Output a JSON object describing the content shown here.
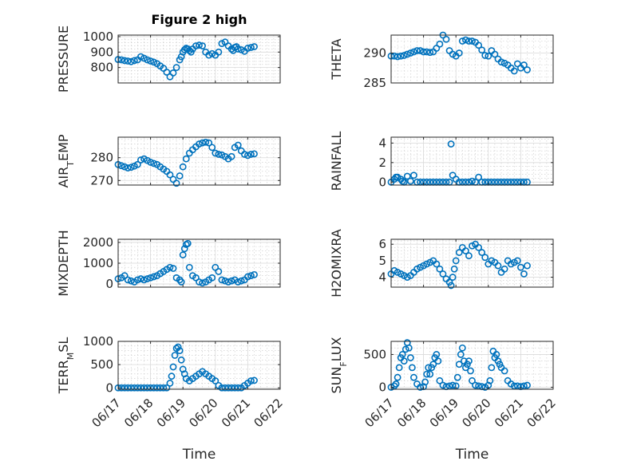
{
  "title": "Figure 2 high",
  "xlabel": "Time",
  "x_ticks": [
    "06/17",
    "06/18",
    "06/19",
    "06/20",
    "06/21",
    "06/22"
  ],
  "marker_color": "#0072BD",
  "chart_data": [
    {
      "type": "scatter",
      "name": "PRESSURE",
      "ylabel": "PRESSURE",
      "ylim": [
        700,
        1010
      ],
      "yticks": [
        800,
        900,
        1000
      ],
      "xlim": [
        0,
        5
      ],
      "x": [
        0.0,
        0.1,
        0.2,
        0.3,
        0.4,
        0.5,
        0.6,
        0.7,
        0.8,
        0.9,
        1.0,
        1.1,
        1.2,
        1.3,
        1.4,
        1.5,
        1.6,
        1.7,
        1.8,
        1.9,
        1.95,
        2.0,
        2.05,
        2.1,
        2.15,
        2.2,
        2.25,
        2.3,
        2.4,
        2.5,
        2.6,
        2.7,
        2.8,
        2.9,
        3.0,
        3.1,
        3.2,
        3.3,
        3.4,
        3.5,
        3.55,
        3.6,
        3.65,
        3.7,
        3.8,
        3.9,
        4.0,
        4.1,
        4.2
      ],
      "y": [
        852,
        850,
        845,
        842,
        838,
        845,
        850,
        870,
        860,
        850,
        842,
        835,
        825,
        810,
        795,
        770,
        740,
        765,
        800,
        850,
        870,
        900,
        915,
        925,
        920,
        910,
        900,
        920,
        940,
        945,
        940,
        900,
        880,
        890,
        880,
        900,
        955,
        965,
        940,
        920,
        910,
        930,
        935,
        920,
        915,
        905,
        925,
        930,
        935
      ]
    },
    {
      "type": "scatter",
      "name": "THETA",
      "ylabel": "THETA",
      "ylim": [
        285,
        293
      ],
      "yticks": [
        285,
        290
      ],
      "xlim": [
        0,
        5
      ],
      "x": [
        0.0,
        0.1,
        0.2,
        0.3,
        0.4,
        0.5,
        0.6,
        0.7,
        0.8,
        0.9,
        1.0,
        1.1,
        1.2,
        1.3,
        1.4,
        1.5,
        1.6,
        1.7,
        1.8,
        1.9,
        2.0,
        2.1,
        2.2,
        2.3,
        2.4,
        2.5,
        2.6,
        2.7,
        2.8,
        2.9,
        3.0,
        3.1,
        3.2,
        3.3,
        3.4,
        3.5,
        3.6,
        3.7,
        3.8,
        3.9,
        4.0,
        4.1,
        4.2
      ],
      "y": [
        289.5,
        289.5,
        289.4,
        289.5,
        289.6,
        289.8,
        290.0,
        290.2,
        290.4,
        290.4,
        290.2,
        290.2,
        290.1,
        290.2,
        290.8,
        291.5,
        293.0,
        292.3,
        290.4,
        289.8,
        289.5,
        290.0,
        292.0,
        292.2,
        292.0,
        292.0,
        291.8,
        291.3,
        290.5,
        289.6,
        289.5,
        290.4,
        289.8,
        289.0,
        288.5,
        288.3,
        288.0,
        287.5,
        287.0,
        288.2,
        287.5,
        288.0,
        287.2
      ]
    },
    {
      "type": "scatter",
      "name": "AIR_TEMP",
      "ylabel": "AIR_TEMP",
      "ylim": [
        268,
        289
      ],
      "yticks": [
        270,
        280
      ],
      "xlim": [
        0,
        5
      ],
      "x": [
        0.0,
        0.1,
        0.2,
        0.3,
        0.4,
        0.5,
        0.6,
        0.7,
        0.8,
        0.9,
        1.0,
        1.1,
        1.2,
        1.3,
        1.4,
        1.5,
        1.6,
        1.7,
        1.8,
        1.9,
        2.0,
        2.1,
        2.2,
        2.3,
        2.4,
        2.5,
        2.6,
        2.7,
        2.8,
        2.9,
        3.0,
        3.1,
        3.2,
        3.3,
        3.4,
        3.5,
        3.6,
        3.7,
        3.8,
        3.9,
        4.0,
        4.1,
        4.2
      ],
      "y": [
        277.0,
        276.5,
        276.0,
        275.5,
        275.8,
        276.3,
        277.0,
        279.0,
        279.5,
        278.8,
        278.0,
        277.5,
        277.0,
        276.0,
        275.0,
        274.0,
        272.5,
        270.5,
        268.8,
        272.0,
        276.0,
        279.5,
        282.0,
        283.5,
        284.8,
        286.0,
        286.5,
        286.8,
        286.5,
        284.5,
        282.0,
        281.5,
        281.2,
        280.5,
        279.5,
        280.5,
        284.5,
        285.5,
        283.0,
        281.5,
        281.0,
        281.5,
        281.7
      ]
    },
    {
      "type": "scatter",
      "name": "RAINFALL",
      "ylabel": "RAINFALL",
      "ylim": [
        -0.3,
        4.6
      ],
      "yticks": [
        0,
        2,
        4
      ],
      "xlim": [
        0,
        5
      ],
      "x": [
        0.0,
        0.1,
        0.15,
        0.2,
        0.3,
        0.35,
        0.4,
        0.5,
        0.6,
        0.7,
        0.8,
        0.9,
        1.0,
        1.1,
        1.2,
        1.3,
        1.4,
        1.5,
        1.6,
        1.7,
        1.8,
        1.85,
        1.9,
        2.0,
        2.1,
        2.2,
        2.3,
        2.4,
        2.5,
        2.6,
        2.7,
        2.8,
        2.9,
        3.0,
        3.1,
        3.2,
        3.3,
        3.4,
        3.5,
        3.6,
        3.7,
        3.8,
        3.9,
        4.0,
        4.1,
        4.2
      ],
      "y": [
        0.0,
        0.3,
        0.5,
        0.5,
        0.3,
        0.1,
        0.0,
        0.6,
        0.1,
        0.7,
        0.0,
        0.0,
        0.0,
        0.0,
        0.0,
        0.0,
        0.0,
        0.0,
        0.0,
        0.0,
        0.0,
        3.9,
        0.7,
        0.3,
        0.0,
        0.0,
        0.0,
        0.0,
        0.1,
        0.0,
        0.5,
        0.0,
        0.0,
        0.0,
        0.0,
        0.0,
        0.0,
        0.0,
        0.0,
        0.0,
        0.0,
        0.0,
        0.0,
        0.0,
        0.0,
        0.0
      ]
    },
    {
      "type": "scatter",
      "name": "MIXDEPTH",
      "ylabel": "MIXDEPTH",
      "ylim": [
        -150,
        2150
      ],
      "yticks": [
        0,
        1000,
        2000
      ],
      "xlim": [
        0,
        5
      ],
      "x": [
        0.0,
        0.1,
        0.2,
        0.3,
        0.4,
        0.5,
        0.6,
        0.7,
        0.8,
        0.9,
        1.0,
        1.1,
        1.2,
        1.3,
        1.4,
        1.5,
        1.6,
        1.7,
        1.8,
        1.9,
        1.95,
        2.0,
        2.05,
        2.1,
        2.15,
        2.2,
        2.3,
        2.4,
        2.5,
        2.6,
        2.7,
        2.8,
        2.9,
        3.0,
        3.1,
        3.2,
        3.3,
        3.4,
        3.5,
        3.6,
        3.7,
        3.8,
        3.9,
        4.0,
        4.1,
        4.2
      ],
      "y": [
        250,
        300,
        400,
        200,
        150,
        100,
        200,
        250,
        200,
        250,
        300,
        350,
        400,
        500,
        600,
        700,
        800,
        750,
        300,
        200,
        100,
        1400,
        1700,
        1900,
        1950,
        800,
        400,
        300,
        100,
        50,
        100,
        200,
        300,
        800,
        600,
        200,
        150,
        100,
        150,
        200,
        100,
        150,
        200,
        350,
        400,
        450
      ]
    },
    {
      "type": "scatter",
      "name": "H2OMIXRA",
      "ylabel": "H2OMIXRA",
      "ylim": [
        3.4,
        6.3
      ],
      "yticks": [
        4,
        5,
        6
      ],
      "xlim": [
        0,
        5
      ],
      "x": [
        0.0,
        0.1,
        0.2,
        0.3,
        0.4,
        0.5,
        0.6,
        0.7,
        0.8,
        0.9,
        1.0,
        1.1,
        1.2,
        1.3,
        1.4,
        1.5,
        1.6,
        1.7,
        1.8,
        1.85,
        1.9,
        1.95,
        2.0,
        2.1,
        2.2,
        2.3,
        2.4,
        2.5,
        2.6,
        2.7,
        2.8,
        2.9,
        3.0,
        3.1,
        3.2,
        3.3,
        3.4,
        3.5,
        3.6,
        3.7,
        3.8,
        3.9,
        4.0,
        4.1,
        4.2
      ],
      "y": [
        4.2,
        4.4,
        4.3,
        4.2,
        4.1,
        4.0,
        4.1,
        4.3,
        4.5,
        4.6,
        4.7,
        4.8,
        4.9,
        5.0,
        4.8,
        4.5,
        4.2,
        3.9,
        3.7,
        3.5,
        4.0,
        4.5,
        5.0,
        5.5,
        5.8,
        5.6,
        5.3,
        5.9,
        6.0,
        5.8,
        5.5,
        5.2,
        4.8,
        5.0,
        4.9,
        4.7,
        4.3,
        4.5,
        5.0,
        4.8,
        4.9,
        5.0,
        4.6,
        4.2,
        4.7
      ]
    },
    {
      "type": "scatter",
      "name": "TERR_MSL",
      "ylabel": "TERR_MSL",
      "ylim": [
        -30,
        1000
      ],
      "yticks": [
        0,
        500,
        1000
      ],
      "xlim": [
        0,
        5
      ],
      "x": [
        0.0,
        0.1,
        0.2,
        0.3,
        0.4,
        0.5,
        0.6,
        0.7,
        0.8,
        0.9,
        1.0,
        1.1,
        1.2,
        1.3,
        1.4,
        1.5,
        1.6,
        1.65,
        1.7,
        1.75,
        1.8,
        1.85,
        1.9,
        1.95,
        2.0,
        2.05,
        2.1,
        2.2,
        2.3,
        2.4,
        2.5,
        2.6,
        2.7,
        2.8,
        2.9,
        3.0,
        3.1,
        3.2,
        3.3,
        3.4,
        3.5,
        3.6,
        3.7,
        3.8,
        3.9,
        4.0,
        4.1,
        4.2
      ],
      "y": [
        0,
        0,
        0,
        0,
        0,
        0,
        0,
        0,
        0,
        0,
        0,
        0,
        0,
        0,
        0,
        0,
        100,
        250,
        450,
        700,
        850,
        880,
        800,
        600,
        400,
        300,
        200,
        150,
        200,
        250,
        300,
        350,
        300,
        250,
        200,
        150,
        50,
        0,
        0,
        0,
        0,
        0,
        0,
        0,
        50,
        100,
        150,
        160
      ]
    },
    {
      "type": "scatter",
      "name": "SUN_FLUX",
      "ylabel": "SUN_FLUX",
      "ylim": [
        -30,
        700
      ],
      "yticks": [
        0,
        500
      ],
      "xlim": [
        0,
        5
      ],
      "x": [
        0.0,
        0.1,
        0.15,
        0.2,
        0.25,
        0.3,
        0.35,
        0.4,
        0.45,
        0.5,
        0.55,
        0.6,
        0.65,
        0.7,
        0.8,
        0.9,
        1.0,
        1.05,
        1.1,
        1.15,
        1.2,
        1.25,
        1.3,
        1.35,
        1.4,
        1.45,
        1.5,
        1.6,
        1.7,
        1.8,
        1.9,
        2.0,
        2.05,
        2.1,
        2.15,
        2.2,
        2.25,
        2.3,
        2.35,
        2.4,
        2.45,
        2.5,
        2.6,
        2.7,
        2.8,
        2.9,
        3.0,
        3.05,
        3.1,
        3.15,
        3.2,
        3.25,
        3.3,
        3.35,
        3.4,
        3.5,
        3.6,
        3.7,
        3.8,
        3.9,
        4.0,
        4.1,
        4.2
      ],
      "y": [
        0,
        20,
        50,
        150,
        300,
        450,
        500,
        400,
        580,
        680,
        600,
        450,
        300,
        150,
        50,
        0,
        10,
        80,
        200,
        300,
        200,
        300,
        350,
        450,
        500,
        400,
        100,
        30,
        10,
        20,
        30,
        20,
        150,
        350,
        500,
        600,
        400,
        300,
        350,
        400,
        250,
        100,
        30,
        20,
        10,
        0,
        30,
        100,
        300,
        550,
        450,
        500,
        400,
        350,
        300,
        250,
        100,
        50,
        20,
        20,
        10,
        20,
        30
      ]
    }
  ]
}
